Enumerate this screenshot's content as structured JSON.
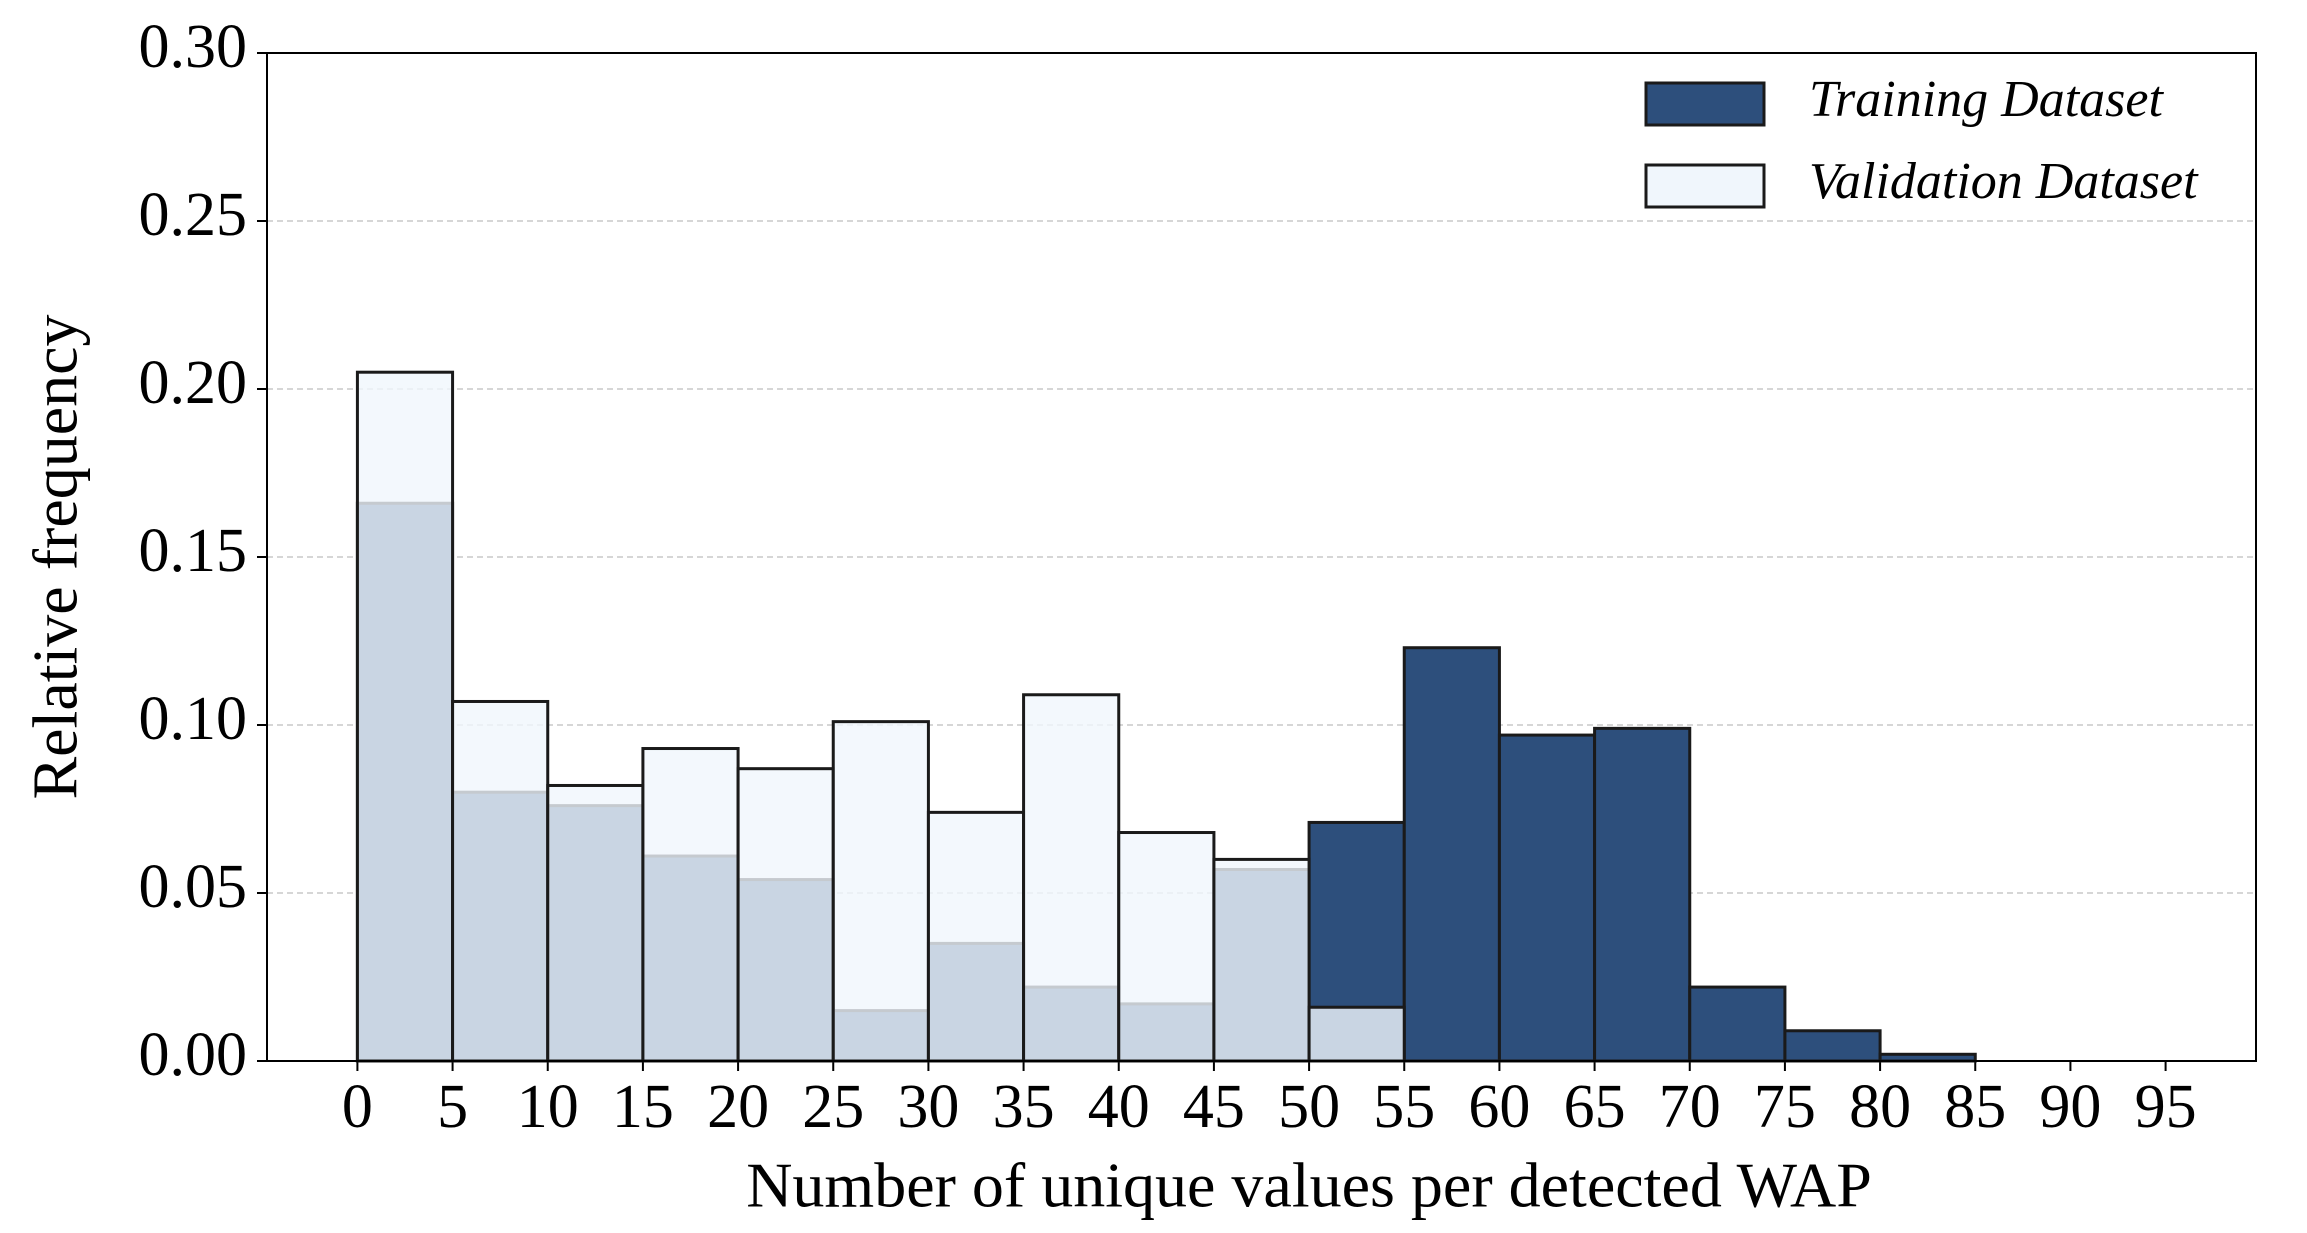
{
  "chart_data": {
    "type": "histogram",
    "xlabel": "Number of unique values per detected WAP",
    "ylabel": "Relative frequency",
    "bins": [
      0,
      5,
      10,
      15,
      20,
      25,
      30,
      35,
      40,
      45,
      50,
      55,
      60,
      65,
      70,
      75,
      80,
      85,
      90,
      95
    ],
    "series": [
      {
        "name": "Training Dataset",
        "color": "#2d4f7c",
        "values": [
          0.166,
          0.08,
          0.076,
          0.061,
          0.054,
          0.015,
          0.035,
          0.022,
          0.017,
          0.057,
          0.071,
          0.123,
          0.097,
          0.099,
          0.022,
          0.009,
          0.002,
          0,
          0
        ]
      },
      {
        "name": "Validation Dataset",
        "color": "#f0f6fc",
        "values": [
          0.205,
          0.107,
          0.082,
          0.093,
          0.087,
          0.101,
          0.074,
          0.109,
          0.068,
          0.06,
          0.016,
          0,
          0,
          0,
          0,
          0,
          0,
          0,
          0
        ]
      }
    ],
    "xlim": [
      -4.75,
      99.75
    ],
    "xticks": [
      0,
      5,
      10,
      15,
      20,
      25,
      30,
      35,
      40,
      45,
      50,
      55,
      60,
      65,
      70,
      75,
      80,
      85,
      90,
      95
    ],
    "ylim": [
      0,
      0.3
    ],
    "yticks": [
      {
        "value": 0,
        "label": "0.00"
      },
      {
        "value": 0.05,
        "label": "0.05"
      },
      {
        "value": 0.1,
        "label": "0.10"
      },
      {
        "value": 0.15,
        "label": "0.15"
      },
      {
        "value": 0.2,
        "label": "0.20"
      },
      {
        "value": 0.25,
        "label": "0.25"
      },
      {
        "value": 0.3,
        "label": "0.30"
      }
    ],
    "grid": true,
    "legend": "upper right"
  }
}
